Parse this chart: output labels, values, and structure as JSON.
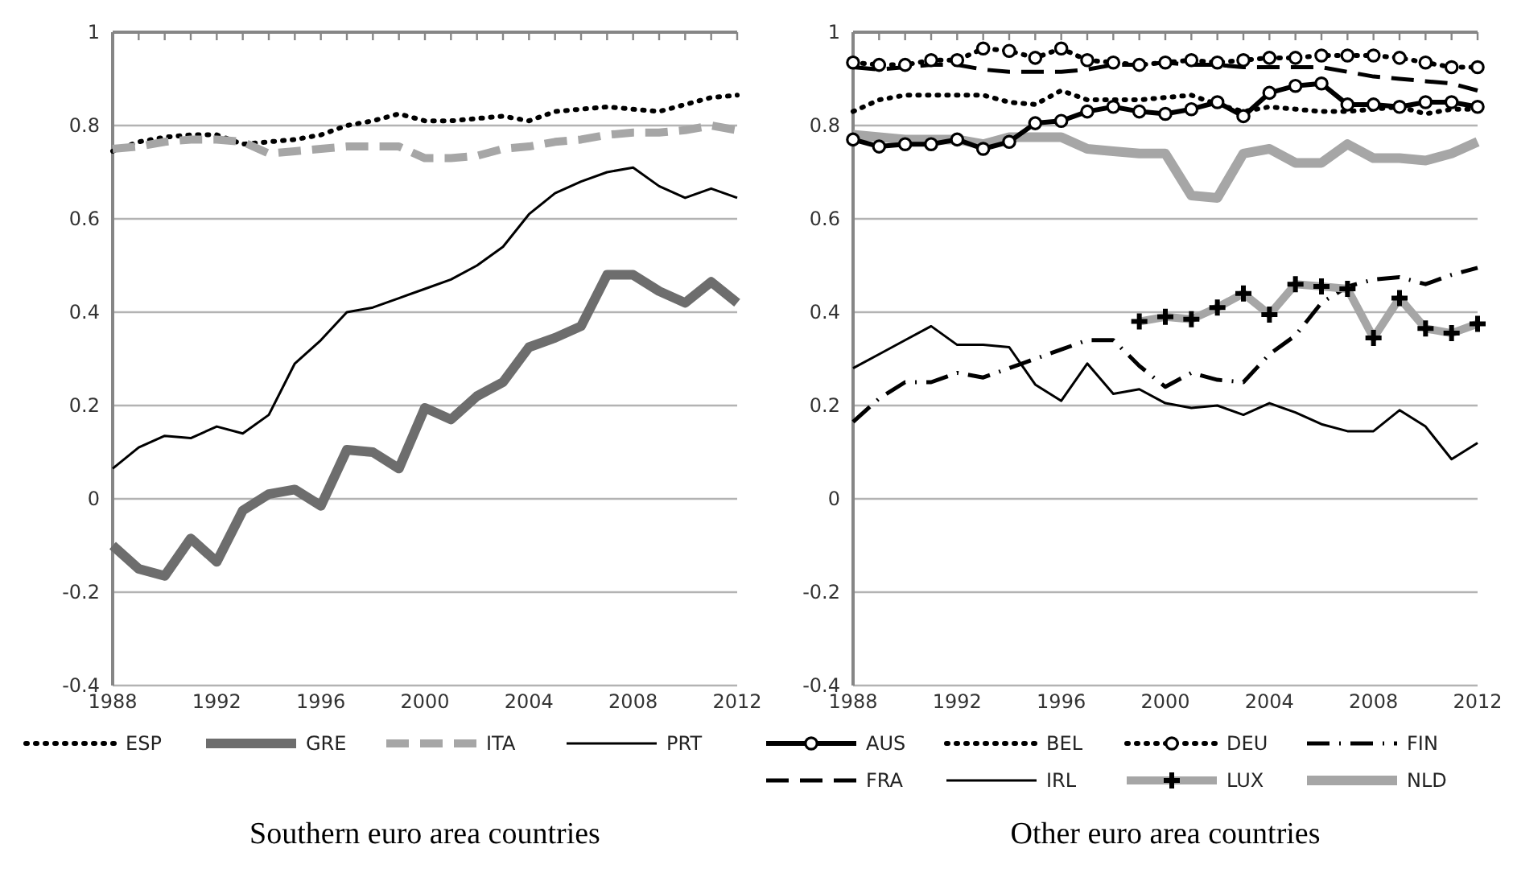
{
  "chart_data": [
    {
      "type": "line",
      "title": "Southern euro area countries",
      "x": [
        1988,
        1989,
        1990,
        1991,
        1992,
        1993,
        1994,
        1995,
        1996,
        1997,
        1998,
        1999,
        2000,
        2001,
        2002,
        2003,
        2004,
        2005,
        2006,
        2007,
        2008,
        2009,
        2010,
        2011,
        2012
      ],
      "xlim": [
        1988,
        2012
      ],
      "xticks": [
        1988,
        {
          "value": 1989,
          "label": null
        },
        {
          "value": 1990,
          "label": null
        },
        {
          "value": 1991,
          "label": null
        },
        1992,
        {
          "value": 1993,
          "label": null
        },
        {
          "value": 1994,
          "label": null
        },
        {
          "value": 1995,
          "label": null
        },
        1996,
        {
          "value": 1997,
          "label": null
        },
        {
          "value": 1998,
          "label": null
        },
        {
          "value": 1999,
          "label": null
        },
        2000,
        {
          "value": 2001,
          "label": null
        },
        {
          "value": 2002,
          "label": null
        },
        {
          "value": 2003,
          "label": null
        },
        2004,
        {
          "value": 2005,
          "label": null
        },
        {
          "value": 2006,
          "label": null
        },
        {
          "value": 2007,
          "label": null
        },
        2008,
        {
          "value": 2009,
          "label": null
        },
        {
          "value": 2010,
          "label": null
        },
        {
          "value": 2011,
          "label": null
        },
        2012
      ],
      "ylim": [
        -0.4,
        1
      ],
      "yticks": [
        -0.4,
        -0.2,
        0,
        0.2,
        0.4,
        0.6,
        0.8,
        1
      ],
      "grid": "y",
      "legend": "bottom",
      "marker": "none",
      "series": [
        {
          "name": "ESP",
          "color": "#000000",
          "line_style": "dotted",
          "values": [
            0.745,
            0.765,
            0.775,
            0.78,
            0.78,
            0.76,
            0.765,
            0.77,
            0.78,
            0.8,
            0.81,
            0.825,
            0.81,
            0.81,
            0.815,
            0.82,
            0.81,
            0.83,
            0.835,
            0.84,
            0.835,
            0.83,
            0.845,
            0.86,
            0.865
          ]
        },
        {
          "name": "GRE",
          "color": "#6d6d6d",
          "line_style": "solid",
          "values": [
            -0.1,
            -0.15,
            -0.165,
            -0.085,
            -0.135,
            -0.025,
            0.01,
            0.02,
            -0.015,
            0.105,
            0.1,
            0.065,
            0.195,
            0.17,
            0.22,
            0.25,
            0.325,
            0.345,
            0.37,
            0.48,
            0.48,
            0.445,
            0.42,
            0.465,
            0.42
          ]
        },
        {
          "name": "ITA",
          "color": "#a6a6a6",
          "line_style": "dashed",
          "values": [
            0.75,
            0.755,
            0.765,
            0.77,
            0.77,
            0.765,
            0.74,
            0.745,
            0.75,
            0.755,
            0.755,
            0.755,
            0.73,
            0.73,
            0.735,
            0.75,
            0.755,
            0.765,
            0.77,
            0.78,
            0.785,
            0.785,
            0.79,
            0.8,
            0.79
          ]
        },
        {
          "name": "PRT",
          "color": "#000000",
          "line_style": "solid",
          "values": [
            0.065,
            0.11,
            0.135,
            0.13,
            0.155,
            0.14,
            0.18,
            0.29,
            0.34,
            0.4,
            0.41,
            0.43,
            0.45,
            0.47,
            0.5,
            0.54,
            0.61,
            0.655,
            0.68,
            0.7,
            0.71,
            0.67,
            0.645,
            0.665,
            0.645
          ]
        }
      ]
    },
    {
      "type": "line",
      "title": "Other euro area countries",
      "x": [
        1988,
        1989,
        1990,
        1991,
        1992,
        1993,
        1994,
        1995,
        1996,
        1997,
        1998,
        1999,
        2000,
        2001,
        2002,
        2003,
        2004,
        2005,
        2006,
        2007,
        2008,
        2009,
        2010,
        2011,
        2012
      ],
      "xlim": [
        1988,
        2012
      ],
      "xticks": [
        1988,
        {
          "value": 1989,
          "label": null
        },
        {
          "value": 1990,
          "label": null
        },
        {
          "value": 1991,
          "label": null
        },
        1992,
        {
          "value": 1993,
          "label": null
        },
        {
          "value": 1994,
          "label": null
        },
        {
          "value": 1995,
          "label": null
        },
        1996,
        {
          "value": 1997,
          "label": null
        },
        {
          "value": 1998,
          "label": null
        },
        {
          "value": 1999,
          "label": null
        },
        2000,
        {
          "value": 2001,
          "label": null
        },
        {
          "value": 2002,
          "label": null
        },
        {
          "value": 2003,
          "label": null
        },
        2004,
        {
          "value": 2005,
          "label": null
        },
        {
          "value": 2006,
          "label": null
        },
        {
          "value": 2007,
          "label": null
        },
        2008,
        {
          "value": 2009,
          "label": null
        },
        {
          "value": 2010,
          "label": null
        },
        {
          "value": 2011,
          "label": null
        },
        2012
      ],
      "ylim": [
        -0.4,
        1
      ],
      "yticks": [
        -0.4,
        -0.2,
        0,
        0.2,
        0.4,
        0.6,
        0.8,
        1
      ],
      "grid": "y",
      "legend": "bottom",
      "marker": "none",
      "series": [
        {
          "name": "AUS",
          "color": "#000000",
          "line_style": "solid",
          "marker": "circle",
          "values": [
            0.77,
            0.755,
            0.76,
            0.76,
            0.77,
            0.75,
            0.765,
            0.805,
            0.81,
            0.83,
            0.84,
            0.83,
            0.825,
            0.835,
            0.85,
            0.82,
            0.87,
            0.885,
            0.89,
            0.845,
            0.845,
            0.84,
            0.85,
            0.85,
            0.84
          ]
        },
        {
          "name": "BEL",
          "color": "#000000",
          "line_style": "dotted",
          "values": [
            0.83,
            0.855,
            0.865,
            0.865,
            0.865,
            0.865,
            0.85,
            0.845,
            0.875,
            0.855,
            0.855,
            0.855,
            0.86,
            0.865,
            0.845,
            0.83,
            0.84,
            0.835,
            0.83,
            0.83,
            0.835,
            0.84,
            0.825,
            0.835,
            0.835
          ]
        },
        {
          "name": "DEU",
          "color": "#000000",
          "line_style": "dotted",
          "marker": "circle",
          "values": [
            0.935,
            0.93,
            0.93,
            0.94,
            0.94,
            0.965,
            0.96,
            0.945,
            0.965,
            0.94,
            0.935,
            0.93,
            0.935,
            0.94,
            0.935,
            0.94,
            0.945,
            0.945,
            0.95,
            0.95,
            0.95,
            0.945,
            0.935,
            0.925,
            0.925
          ]
        },
        {
          "name": "FIN",
          "color": "#000000",
          "line_style": "dashdot",
          "values": [
            0.165,
            0.215,
            0.25,
            0.25,
            0.27,
            0.26,
            0.28,
            0.3,
            0.32,
            0.34,
            0.34,
            0.285,
            0.24,
            0.27,
            0.255,
            0.25,
            0.31,
            0.35,
            0.42,
            0.455,
            0.47,
            0.475,
            0.46,
            0.48,
            0.495
          ]
        },
        {
          "name": "FRA",
          "color": "#000000",
          "line_style": "dashed",
          "values": [
            0.925,
            0.92,
            0.925,
            0.93,
            0.93,
            0.92,
            0.915,
            0.915,
            0.915,
            0.92,
            0.93,
            0.93,
            0.935,
            0.93,
            0.93,
            0.925,
            0.925,
            0.925,
            0.925,
            0.915,
            0.905,
            0.9,
            0.895,
            0.89,
            0.875
          ]
        },
        {
          "name": "IRL",
          "color": "#000000",
          "line_style": "solid",
          "values": [
            0.28,
            0.31,
            0.34,
            0.37,
            0.33,
            0.33,
            0.325,
            0.245,
            0.21,
            0.29,
            0.225,
            0.235,
            0.205,
            0.195,
            0.2,
            0.18,
            0.205,
            0.185,
            0.16,
            0.145,
            0.145,
            0.19,
            0.155,
            0.085,
            0.12
          ]
        },
        {
          "name": "LUX",
          "color": "#a6a6a6",
          "line_style": "solid",
          "marker": "cross",
          "values": [
            null,
            null,
            null,
            null,
            null,
            null,
            null,
            null,
            null,
            null,
            null,
            0.38,
            0.39,
            0.385,
            0.41,
            0.44,
            0.395,
            0.46,
            0.455,
            0.45,
            0.345,
            0.43,
            0.365,
            0.355,
            0.375
          ]
        },
        {
          "name": "NLD",
          "color": "#a6a6a6",
          "line_style": "solid",
          "values": [
            0.78,
            0.775,
            0.77,
            0.77,
            0.77,
            0.76,
            0.775,
            0.775,
            0.775,
            0.75,
            0.745,
            0.74,
            0.74,
            0.65,
            0.645,
            0.74,
            0.75,
            0.72,
            0.72,
            0.76,
            0.73,
            0.73,
            0.725,
            0.74,
            0.765
          ]
        }
      ]
    }
  ]
}
